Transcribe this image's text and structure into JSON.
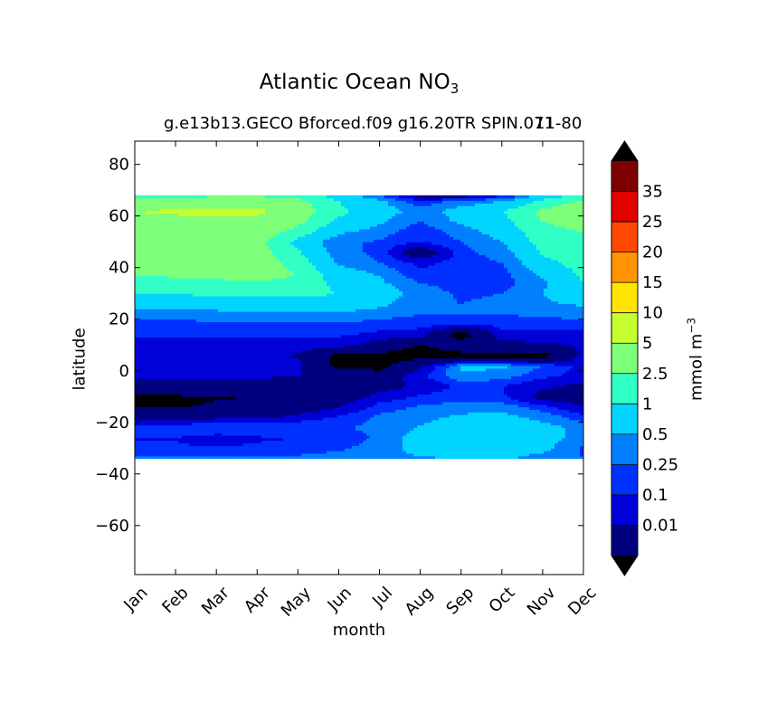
{
  "chart_data": {
    "type": "heatmap",
    "title": "Atlantic Ocean NO",
    "title_subscript": "3",
    "subtitle": "g.e13b13.GECO Bforced.f09 g16.20TR SPIN.071",
    "subtitle_overlap": "11-80",
    "xlabel": "month",
    "ylabel": "latitude",
    "colorbar_label": "mmol m",
    "colorbar_label_exponent": "−3",
    "x_ticks": [
      "Jan",
      "Feb",
      "Mar",
      "Apr",
      "May",
      "Jun",
      "Jul",
      "Aug",
      "Sep",
      "Oct",
      "Nov",
      "Dec"
    ],
    "y_ticks": [
      80,
      60,
      40,
      20,
      0,
      -20,
      -40,
      -60
    ],
    "y_tick_labels": [
      "80",
      "60",
      "40",
      "20",
      "0",
      "−20",
      "−40",
      "−60"
    ],
    "ylim": [
      -79,
      89
    ],
    "xlim": [
      0,
      11
    ],
    "data_lat_range": [
      -34,
      68
    ],
    "levels": [
      0.01,
      0.1,
      0.25,
      0.5,
      1,
      2.5,
      5,
      10,
      15,
      20,
      25,
      35
    ],
    "level_labels": [
      "0.01",
      "0.1",
      "0.25",
      "0.5",
      "1",
      "2.5",
      "5",
      "10",
      "15",
      "20",
      "25",
      "35"
    ],
    "colors": [
      "#00007f",
      "#0000d9",
      "#0030ff",
      "#0080ff",
      "#00d4ff",
      "#30ffc6",
      "#7dff7a",
      "#c6ff30",
      "#ffe500",
      "#ff9300",
      "#ff4700",
      "#e30000",
      "#7f0000"
    ],
    "under_color": "#000000",
    "over_color": "#000000",
    "latitudes": [
      -34,
      -30,
      -26,
      -22,
      -18,
      -14,
      -10,
      -6,
      -2,
      2,
      6,
      10,
      14,
      18,
      22,
      26,
      30,
      34,
      38,
      42,
      46,
      50,
      54,
      58,
      62,
      66,
      68
    ],
    "values": [
      [
        0.6,
        0.28,
        0.24,
        0.55,
        0.06,
        0.008,
        0.008,
        0.04,
        0.12,
        0.14,
        0.24,
        0.18,
        0.27,
        0.4,
        0.7,
        1.5,
        2.5,
        4,
        5.5,
        6,
        5.5,
        5,
        6,
        8,
        10,
        6,
        4
      ],
      [
        0.6,
        0.28,
        0.24,
        0.55,
        0.06,
        0.009,
        0.008,
        0.04,
        0.12,
        0.14,
        0.24,
        0.18,
        0.27,
        0.4,
        0.7,
        1.5,
        2.6,
        4.2,
        5.6,
        6.5,
        6,
        5.5,
        6.5,
        8.5,
        11,
        7,
        4
      ],
      [
        0.6,
        0.28,
        0.15,
        0.55,
        0.08,
        0.012,
        0.009,
        0.045,
        0.12,
        0.15,
        0.24,
        0.2,
        0.27,
        0.4,
        0.75,
        1.6,
        2.8,
        4.5,
        5.8,
        7,
        6.5,
        6,
        7,
        9,
        11,
        7.5,
        4.5
      ],
      [
        0.6,
        0.3,
        0.22,
        0.55,
        0.08,
        0.02,
        0.01,
        0.05,
        0.12,
        0.15,
        0.24,
        0.2,
        0.27,
        0.4,
        0.8,
        1.8,
        3,
        4.8,
        6,
        7,
        6.8,
        6.5,
        7.5,
        9,
        11,
        7.5,
        4.5
      ],
      [
        0.6,
        0.35,
        0.25,
        0.55,
        0.15,
        0.04,
        0.02,
        0.04,
        0.1,
        0.14,
        0.08,
        0.2,
        0.28,
        0.42,
        0.8,
        1.8,
        3,
        4.5,
        5,
        4,
        2.8,
        2,
        4,
        6,
        8,
        6,
        4
      ],
      [
        0.7,
        0.45,
        0.3,
        0.5,
        0.3,
        0.1,
        0.04,
        0.02,
        0.06,
        0.005,
        0.005,
        0.18,
        0.27,
        0.45,
        0.9,
        1.6,
        2.5,
        2,
        1.5,
        0.9,
        0.7,
        0.6,
        1.2,
        2.2,
        3,
        2.5,
        1.8
      ],
      [
        0.8,
        0.7,
        0.6,
        0.55,
        0.6,
        0.35,
        0.15,
        0.06,
        0.04,
        0.004,
        0.005,
        0.05,
        0.2,
        0.35,
        0.7,
        1.2,
        1.8,
        1.2,
        0.9,
        0.5,
        0.4,
        0.45,
        0.7,
        1.2,
        1.6,
        1.2,
        0.5
      ],
      [
        0.9,
        1.4,
        1.5,
        1.1,
        0.8,
        0.55,
        0.3,
        0.12,
        0.2,
        0.08,
        0.004,
        0.008,
        0.18,
        0.3,
        0.5,
        0.6,
        0.7,
        0.5,
        0.3,
        0.2,
        0.03,
        0.25,
        0.3,
        0.5,
        0.7,
        0.3,
        0.05
      ],
      [
        1,
        1.8,
        2,
        1.8,
        1.2,
        0.7,
        0.4,
        0.3,
        0.8,
        1.2,
        0.004,
        0.05,
        0.003,
        0.3,
        0.5,
        0.5,
        0.45,
        0.4,
        0.3,
        0.35,
        0.4,
        0.5,
        0.7,
        1.2,
        1.5,
        0.6,
        0.04
      ],
      [
        1.1,
        1.9,
        2,
        1.8,
        1.3,
        0.8,
        0.3,
        0.25,
        0.7,
        1.2,
        0.004,
        0.06,
        0.2,
        0.3,
        0.5,
        0.6,
        0.5,
        0.35,
        0.4,
        0.5,
        0.7,
        1,
        1.5,
        2,
        2.5,
        1,
        0.2
      ],
      [
        0.7,
        1.3,
        1.5,
        1.4,
        0.8,
        0.35,
        0.06,
        0.12,
        0.3,
        0.5,
        0.004,
        0.07,
        0.2,
        0.3,
        0.6,
        0.9,
        1,
        0.9,
        1.2,
        2,
        2.8,
        3.5,
        4,
        5,
        6,
        2.8,
        1.5
      ],
      [
        0.5,
        0.45,
        0.7,
        0.8,
        0.35,
        0.12,
        0.04,
        0.07,
        0.18,
        0.2,
        0.15,
        0.12,
        0.2,
        0.35,
        0.7,
        1.1,
        1.8,
        2.5,
        3,
        3.5,
        3.8,
        4.2,
        5,
        7,
        10,
        6,
        3
      ]
    ]
  }
}
